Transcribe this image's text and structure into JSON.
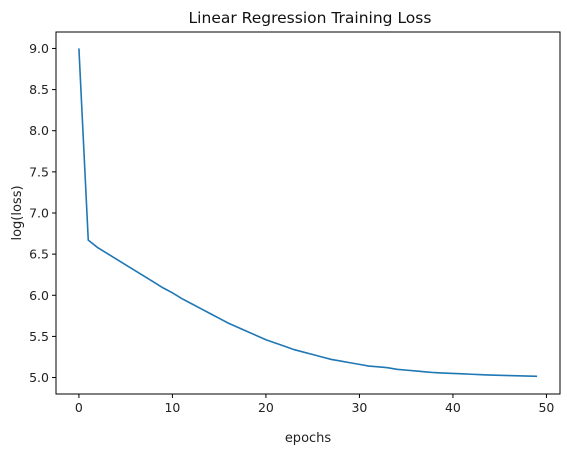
{
  "chart_data": {
    "type": "line",
    "title": "Linear Regression Training Loss",
    "xlabel": "epochs",
    "ylabel": "log(loss)",
    "xlim": [
      -2.45,
      51.45
    ],
    "ylim": [
      4.8,
      9.2
    ],
    "xticks": [
      "0",
      "10",
      "20",
      "30",
      "40",
      "50"
    ],
    "yticks": [
      "5.0",
      "5.5",
      "6.0",
      "6.5",
      "7.0",
      "7.5",
      "8.0",
      "8.5",
      "9.0"
    ],
    "grid": false,
    "legend": "none",
    "series": [
      {
        "color": "#1f77b4",
        "x": [
          0,
          1,
          2,
          3,
          4,
          5,
          6,
          7,
          8,
          9,
          10,
          11,
          12,
          13,
          14,
          15,
          16,
          17,
          18,
          19,
          20,
          21,
          22,
          23,
          24,
          25,
          26,
          27,
          28,
          29,
          30,
          31,
          32,
          33,
          34,
          35,
          36,
          37,
          38,
          39,
          40,
          41,
          42,
          43,
          44,
          45,
          46,
          47,
          48,
          49
        ],
        "y": [
          9.0,
          6.67,
          6.58,
          6.51,
          6.44,
          6.37,
          6.3,
          6.23,
          6.16,
          6.09,
          6.03,
          5.96,
          5.9,
          5.84,
          5.78,
          5.72,
          5.66,
          5.61,
          5.56,
          5.51,
          5.46,
          5.42,
          5.38,
          5.34,
          5.31,
          5.28,
          5.25,
          5.22,
          5.2,
          5.18,
          5.16,
          5.14,
          5.13,
          5.12,
          5.1,
          5.09,
          5.08,
          5.07,
          5.06,
          5.055,
          5.05,
          5.045,
          5.04,
          5.035,
          5.03,
          5.027,
          5.024,
          5.021,
          5.018,
          5.015
        ]
      }
    ]
  }
}
